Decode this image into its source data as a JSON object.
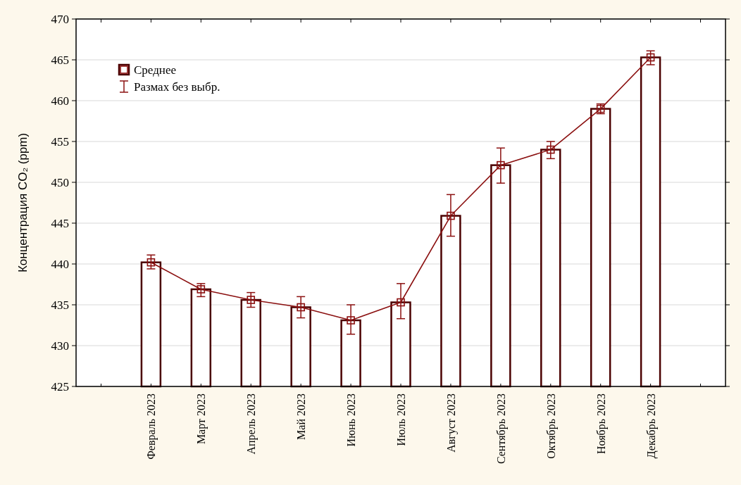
{
  "chart_data": {
    "type": "bar",
    "ylabel": "Концентрация CO₂ (ppm)",
    "categories": [
      null,
      "Февраль 2023",
      "Март 2023",
      "Апрель 2023",
      "Май 2023",
      "Июнь 2023",
      "Июль 2023",
      "Август 2023",
      "Сентябрь 2023",
      "Октябрь 2023",
      "Ноябрь 2023",
      "Декабрь 2023",
      null
    ],
    "series": [
      {
        "color": "#4a0000",
        "values": [
          null,
          440.2,
          436.9,
          435.6,
          434.7,
          433.1,
          435.3,
          445.9,
          452.1,
          454.0,
          459.0,
          465.3,
          null
        ]
      },
      {
        "type": "line",
        "name": "Среднее",
        "color": "#8b1010",
        "marker": "square",
        "values": [
          null,
          440.2,
          436.9,
          435.6,
          434.7,
          433.1,
          435.3,
          445.9,
          452.1,
          454.0,
          459.0,
          465.3,
          null
        ],
        "errors": [
          null,
          [
            439.4,
            441.1
          ],
          [
            436.0,
            437.6
          ],
          [
            434.7,
            436.5
          ],
          [
            433.4,
            436.0
          ],
          [
            431.4,
            435.0
          ],
          [
            433.3,
            437.6
          ],
          [
            443.4,
            448.5
          ],
          [
            449.9,
            454.2
          ],
          [
            452.9,
            455.0
          ],
          [
            458.4,
            459.6
          ],
          [
            464.4,
            466.1
          ],
          null
        ]
      }
    ],
    "annotations": [
      "Размах без выбр."
    ],
    "ylim": [
      425,
      470
    ],
    "yticks": [
      425,
      430,
      435,
      440,
      445,
      450,
      455,
      460,
      465,
      470
    ],
    "grid": "y",
    "legend": "top left"
  }
}
